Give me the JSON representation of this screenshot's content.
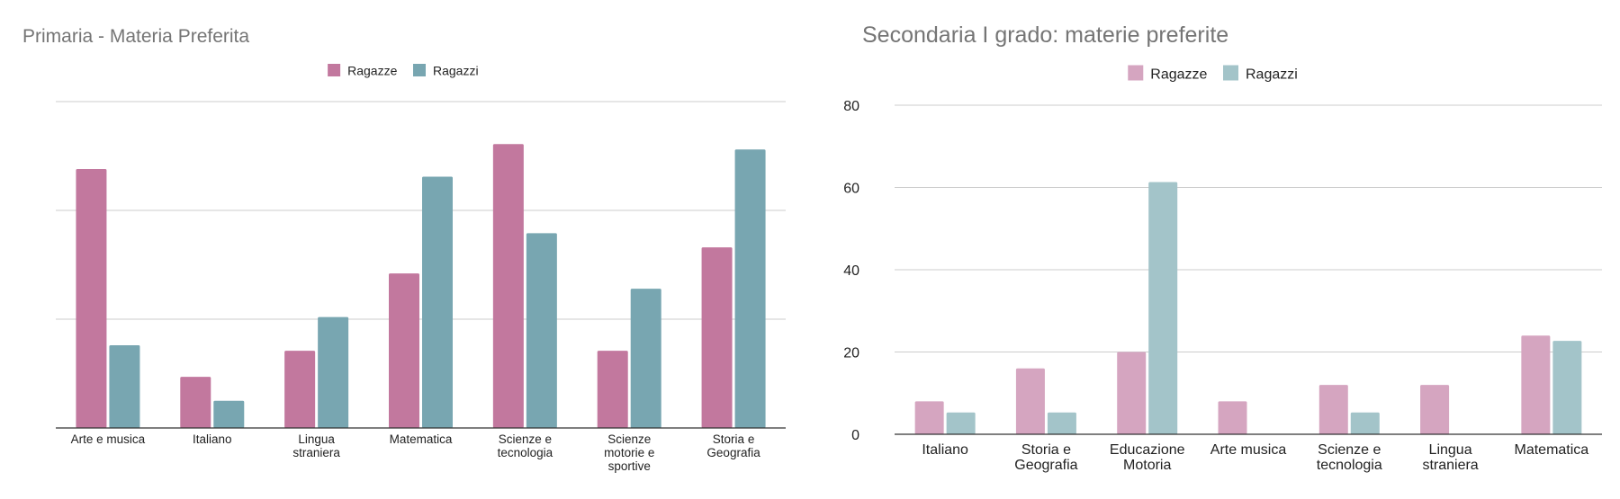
{
  "chart_data": [
    {
      "type": "bar",
      "title": "Primaria - Materia Preferita",
      "xlabel": "",
      "ylabel": "",
      "legend_position": "top-center",
      "grid": true,
      "y_tick_labels_shown": false,
      "ylim": [
        0,
        30
      ],
      "categories": [
        [
          "Arte e musica"
        ],
        [
          "Italiano"
        ],
        [
          "Lingua",
          "straniera"
        ],
        [
          "Matematica"
        ],
        [
          "Scienze e",
          "tecnologia"
        ],
        [
          "Scienze",
          "motorie e",
          "sportive"
        ],
        [
          "Storia e",
          "Geografia"
        ]
      ],
      "series": [
        {
          "name": "Ragazze",
          "color": "#c2789e",
          "values": [
            23.8,
            4.7,
            7.1,
            14.2,
            26.1,
            7.1,
            16.6
          ]
        },
        {
          "name": "Ragazzi",
          "color": "#78a6b1",
          "values": [
            7.6,
            2.5,
            10.2,
            23.1,
            17.9,
            12.8,
            25.6
          ]
        }
      ]
    },
    {
      "type": "bar",
      "title": "Secondaria I grado: materie preferite",
      "xlabel": "",
      "ylabel": "",
      "legend_position": "top-center",
      "grid": true,
      "ylim": [
        0,
        80
      ],
      "yticks": [
        0,
        20,
        40,
        60,
        80
      ],
      "categories": [
        [
          "Italiano"
        ],
        [
          "Storia e",
          "Geografia"
        ],
        [
          "Educazione",
          "Motoria"
        ],
        [
          "Arte musica"
        ],
        [
          "Scienze e",
          "tecnologia"
        ],
        [
          "Lingua",
          "straniera"
        ],
        [
          "Matematica"
        ]
      ],
      "series": [
        {
          "name": "Ragazze",
          "color": "#d5a5c0",
          "values": [
            8,
            16,
            20,
            8,
            12,
            12,
            24
          ]
        },
        {
          "name": "Ragazzi",
          "color": "#a3c4c9",
          "values": [
            5.3,
            5.3,
            61.3,
            0,
            5.3,
            0,
            22.7
          ]
        }
      ]
    }
  ]
}
